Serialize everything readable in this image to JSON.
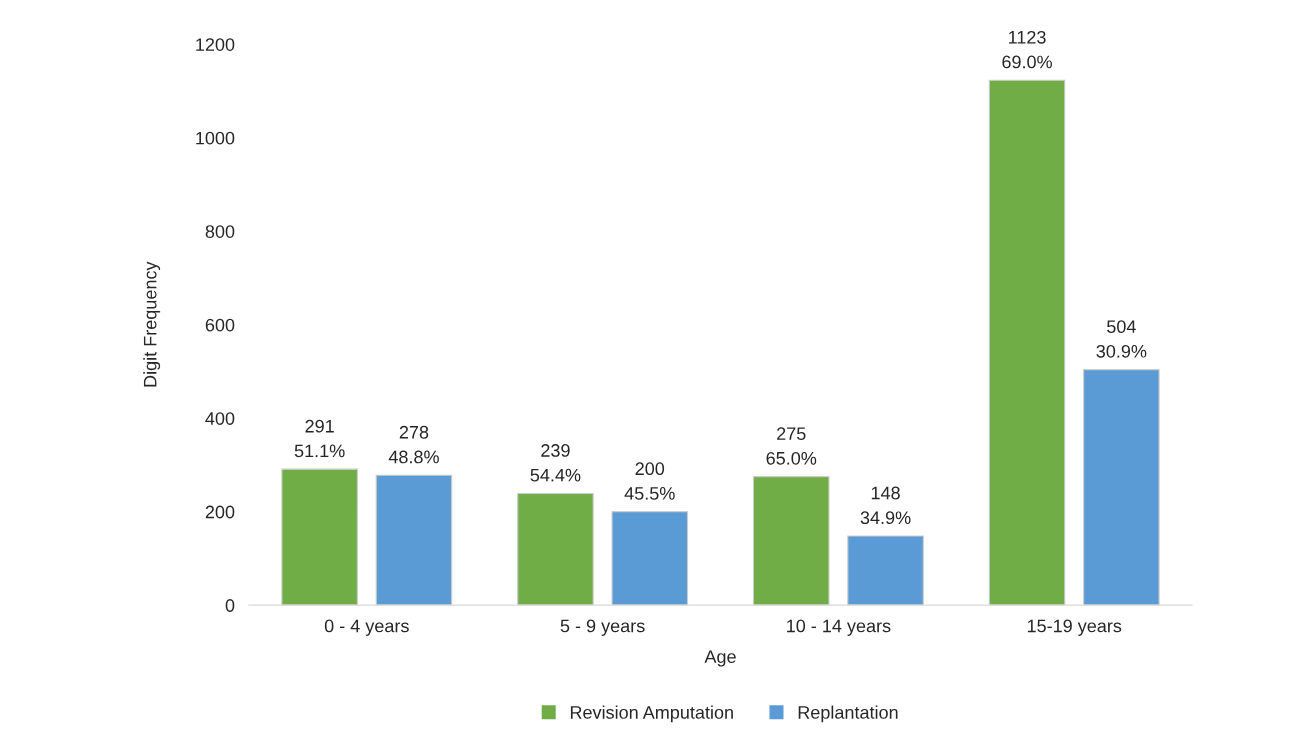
{
  "chart_data": {
    "type": "bar",
    "xlabel": "Age",
    "ylabel": "Digit Frequency",
    "categories": [
      "0 - 4 years",
      "5 - 9 years",
      "10 - 14 years",
      "15-19 years"
    ],
    "series": [
      {
        "name": "Revision Amputation",
        "color": "#70ad47",
        "values": [
          291,
          239,
          275,
          1123
        ],
        "value_labels": [
          "291\n51.1%",
          "239\n54.4%",
          "275\n65.0%",
          "1123\n69.0%"
        ]
      },
      {
        "name": "Replantation",
        "color": "#5b9bd5",
        "values": [
          278,
          200,
          148,
          504
        ],
        "value_labels": [
          "278\n48.8%",
          "200\n45.5%",
          "148\n34.9%",
          "504\n30.9%"
        ]
      }
    ],
    "ylim": [
      0,
      1200
    ],
    "yticks": [
      0,
      200,
      400,
      600,
      800,
      1000,
      1200
    ],
    "grid": false,
    "legend": "bottom"
  }
}
